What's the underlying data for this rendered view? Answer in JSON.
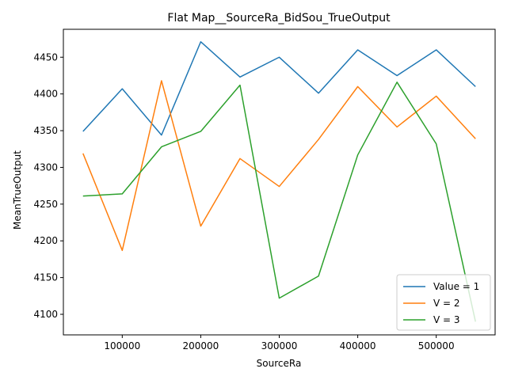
{
  "chart_data": {
    "type": "line",
    "title": "Flat Map__SourceRa_BidSou_TrueOutput",
    "xlabel": "SourceRa",
    "ylabel": "MeanTrueOutput",
    "x": [
      50000,
      100000,
      150000,
      200000,
      250000,
      300000,
      350000,
      400000,
      450000,
      500000,
      550000
    ],
    "xlim": [
      25000,
      575000
    ],
    "ylim": [
      4072,
      4488
    ],
    "xticks": [
      100000,
      200000,
      300000,
      400000,
      500000
    ],
    "xtick_labels": [
      "100000",
      "200000",
      "300000",
      "400000",
      "500000"
    ],
    "yticks": [
      4100,
      4150,
      4200,
      4250,
      4300,
      4350,
      4400,
      4450
    ],
    "ytick_labels": [
      "4100",
      "4150",
      "4200",
      "4250",
      "4300",
      "4350",
      "4400",
      "4450"
    ],
    "grid": false,
    "legend_position": "lower-right",
    "series": [
      {
        "name": "Value = 1",
        "color": "#1f77b4",
        "values": [
          4349,
          4407,
          4344,
          4471,
          4423,
          4450,
          4401,
          4460,
          4425,
          4460,
          4410
        ]
      },
      {
        "name": "V = 2",
        "color": "#ff7f0e",
        "values": [
          4319,
          4187,
          4418,
          4220,
          4312,
          4274,
          4338,
          4410,
          4355,
          4397,
          4339
        ]
      },
      {
        "name": "V = 3",
        "color": "#2ca02c",
        "values": [
          4261,
          4264,
          4328,
          4349,
          4412,
          4122,
          4152,
          4317,
          4416,
          4332,
          4090
        ]
      }
    ]
  }
}
